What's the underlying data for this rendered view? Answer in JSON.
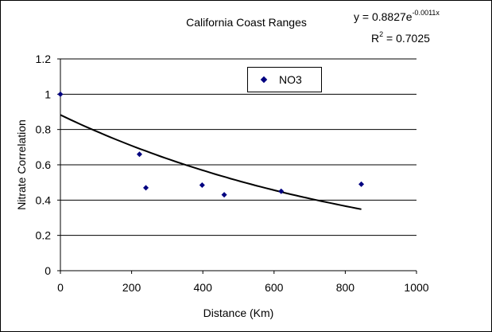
{
  "chart_data": {
    "type": "scatter",
    "title": "California Coast Ranges",
    "xlabel": "Distance (Km)",
    "ylabel": "Nitrate Correlation",
    "xlim": [
      0,
      1000
    ],
    "ylim": [
      0,
      1.2
    ],
    "x_ticks": [
      "0",
      "200",
      "400",
      "600",
      "800",
      "1000"
    ],
    "y_ticks": [
      "0",
      "0.2",
      "0.4",
      "0.6",
      "0.8",
      "1",
      "1.2"
    ],
    "grid": "horizontal",
    "legend_placement": "top-center",
    "series": [
      {
        "name": "NO3",
        "color": "#000080",
        "marker": "diamond",
        "points": [
          {
            "x": 0,
            "y": 1.0
          },
          {
            "x": 222,
            "y": 0.66
          },
          {
            "x": 240,
            "y": 0.47
          },
          {
            "x": 398,
            "y": 0.485
          },
          {
            "x": 460,
            "y": 0.43
          },
          {
            "x": 620,
            "y": 0.45
          },
          {
            "x": 845,
            "y": 0.49
          }
        ]
      }
    ],
    "trendline": {
      "type": "exponential",
      "a": 0.8827,
      "b": -0.0011,
      "x_range": [
        0,
        845
      ],
      "color": "#000000"
    },
    "annotations": {
      "equation_prefix": "y = 0.8827e",
      "equation_exponent": "-0.0011x",
      "r2_prefix": "R",
      "r2_sup": "2",
      "r2_suffix": " = 0.7025"
    }
  }
}
